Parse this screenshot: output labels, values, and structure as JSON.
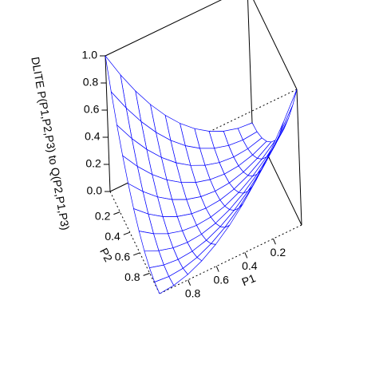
{
  "chart_data": {
    "type": "surface",
    "zlabel": "DLITE P(P1,P2,P3) to Q(P2,P1,P3)",
    "xlabel": "P1",
    "ylabel": "P2",
    "color": "#0000ff",
    "x": [
      0,
      0.1,
      0.2,
      0.3,
      0.4,
      0.5,
      0.6,
      0.7,
      0.8,
      0.9,
      1
    ],
    "y": [
      0,
      0.1,
      0.2,
      0.3,
      0.4,
      0.5,
      0.6,
      0.7,
      0.8,
      0.9,
      1
    ],
    "z": [
      [
        0,
        0.01,
        0.04,
        0.09,
        0.16,
        0.25,
        0.36,
        0.49,
        0.64,
        0.81,
        1
      ],
      [
        0.01,
        0,
        0.01,
        0.04,
        0.09,
        0.16,
        0.25,
        0.36,
        0.49,
        0.64,
        0.81
      ],
      [
        0.04,
        0.01,
        0,
        0.01,
        0.04,
        0.09,
        0.16,
        0.25,
        0.36,
        0.49,
        0.64
      ],
      [
        0.09,
        0.04,
        0.01,
        0,
        0.01,
        0.04,
        0.09,
        0.16,
        0.25,
        0.36,
        0.49
      ],
      [
        0.16,
        0.09,
        0.04,
        0.01,
        0,
        0.01,
        0.04,
        0.09,
        0.16,
        0.25,
        0.36
      ],
      [
        0.25,
        0.16,
        0.09,
        0.04,
        0.01,
        0,
        0.01,
        0.04,
        0.09,
        0.16,
        0.25
      ],
      [
        0.36,
        0.25,
        0.16,
        0.09,
        0.04,
        0.01,
        0,
        0.01,
        0.04,
        0.09,
        0.16
      ],
      [
        0.49,
        0.36,
        0.25,
        0.16,
        0.09,
        0.04,
        0.01,
        0,
        0.01,
        0.04,
        0.09
      ],
      [
        0.64,
        0.49,
        0.36,
        0.25,
        0.16,
        0.09,
        0.04,
        0.01,
        0,
        0.01,
        0.04
      ],
      [
        0.81,
        0.64,
        0.49,
        0.36,
        0.25,
        0.16,
        0.09,
        0.04,
        0.01,
        0,
        0.01
      ],
      [
        1,
        0.81,
        0.64,
        0.49,
        0.36,
        0.25,
        0.16,
        0.09,
        0.04,
        0.01,
        0
      ]
    ],
    "xlim": [
      0,
      1
    ],
    "ylim": [
      0,
      1
    ],
    "zlim": [
      0,
      1
    ],
    "xticks": [
      0.2,
      0.4,
      0.6,
      0.8
    ],
    "yticks": [
      0.2,
      0.4,
      0.6,
      0.8
    ],
    "zticks": [
      {
        "value": 0,
        "label": "0.0"
      },
      0.2,
      0.4,
      0.6,
      0.8,
      {
        "value": 1,
        "label": "1.0"
      }
    ]
  }
}
